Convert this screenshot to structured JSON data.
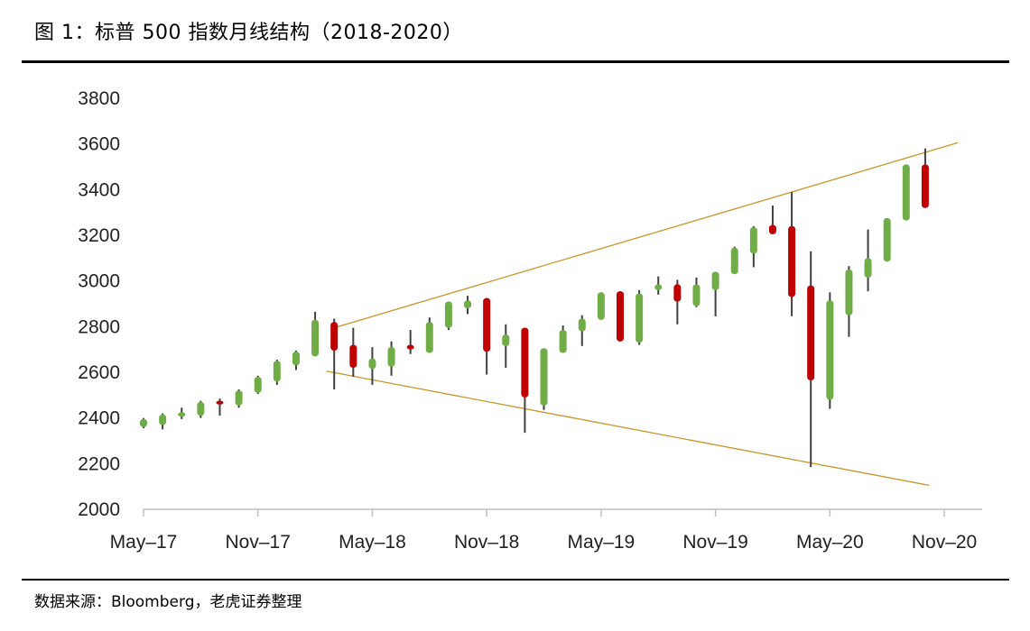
{
  "title": "图 1：标普 500 指数月线结构（2018-2020）",
  "source": "数据来源：Bloomberg，老虎证券整理",
  "colors": {
    "up": "#70AD47",
    "down": "#C00000",
    "wick": "#404040",
    "trendline": "#C9962A",
    "axis": "#BFBFBF"
  },
  "chart_data": {
    "type": "candlestick",
    "title": "",
    "xlabel": "",
    "ylabel": "",
    "ylim": [
      2000,
      3800
    ],
    "yticks": [
      2000,
      2200,
      2400,
      2600,
      2800,
      3000,
      3200,
      3400,
      3600,
      3800
    ],
    "xticks": [
      {
        "index": 0,
        "label": "May–17"
      },
      {
        "index": 6,
        "label": "Nov–17"
      },
      {
        "index": 12,
        "label": "May–18"
      },
      {
        "index": 18,
        "label": "Nov–18"
      },
      {
        "index": 24,
        "label": "May–19"
      },
      {
        "index": 30,
        "label": "Nov–19"
      },
      {
        "index": 36,
        "label": "May–20"
      },
      {
        "index": 42,
        "label": "Nov–20"
      }
    ],
    "grid": false,
    "candles": [
      [
        2360,
        2395,
        2400,
        2355
      ],
      [
        2370,
        2415,
        2420,
        2350
      ],
      [
        2405,
        2425,
        2445,
        2395
      ],
      [
        2410,
        2470,
        2475,
        2400
      ],
      [
        2475,
        2460,
        2485,
        2410
      ],
      [
        2455,
        2520,
        2525,
        2445
      ],
      [
        2510,
        2580,
        2585,
        2505
      ],
      [
        2560,
        2650,
        2655,
        2545
      ],
      [
        2630,
        2690,
        2695,
        2610
      ],
      [
        2670,
        2830,
        2865,
        2670
      ],
      [
        2820,
        2695,
        2835,
        2525
      ],
      [
        2720,
        2620,
        2795,
        2580
      ],
      [
        2615,
        2660,
        2710,
        2545
      ],
      [
        2625,
        2710,
        2735,
        2585
      ],
      [
        2720,
        2700,
        2785,
        2680
      ],
      [
        2685,
        2820,
        2840,
        2685
      ],
      [
        2795,
        2910,
        2910,
        2785
      ],
      [
        2880,
        2915,
        2935,
        2855
      ],
      [
        2925,
        2690,
        2925,
        2590
      ],
      [
        2715,
        2765,
        2810,
        2620
      ],
      [
        2795,
        2490,
        2795,
        2335
      ],
      [
        2455,
        2705,
        2705,
        2435
      ],
      [
        2685,
        2785,
        2805,
        2685
      ],
      [
        2780,
        2835,
        2850,
        2715
      ],
      [
        2830,
        2950,
        2950,
        2830
      ],
      [
        2955,
        2735,
        2955,
        2735
      ],
      [
        2730,
        2945,
        2960,
        2720
      ],
      [
        2960,
        2985,
        3020,
        2940
      ],
      [
        2985,
        2910,
        3005,
        2810
      ],
      [
        2890,
        2985,
        3015,
        2885
      ],
      [
        2960,
        3040,
        3040,
        2845
      ],
      [
        3030,
        3145,
        3150,
        3030
      ],
      [
        3120,
        3235,
        3240,
        3060
      ],
      [
        3245,
        3205,
        3330,
        3205
      ],
      [
        3240,
        2930,
        3390,
        2845
      ],
      [
        2980,
        2565,
        3130,
        2185
      ],
      [
        2480,
        2915,
        2950,
        2440
      ],
      [
        2850,
        3050,
        3065,
        2755
      ],
      [
        3015,
        3100,
        3225,
        2955
      ],
      [
        3085,
        3275,
        3275,
        3085
      ],
      [
        3265,
        3510,
        3510,
        3265
      ],
      [
        3510,
        3320,
        3580,
        3320
      ]
    ],
    "candle_fields": [
      "open",
      "close",
      "high",
      "low"
    ],
    "trendlines": [
      {
        "from": {
          "index": 10,
          "value": 2795
        },
        "to": {
          "index": 42.7,
          "value": 3605
        }
      },
      {
        "from": {
          "index": 9.6,
          "value": 2605
        },
        "to": {
          "index": 41.2,
          "value": 2105
        }
      }
    ]
  }
}
